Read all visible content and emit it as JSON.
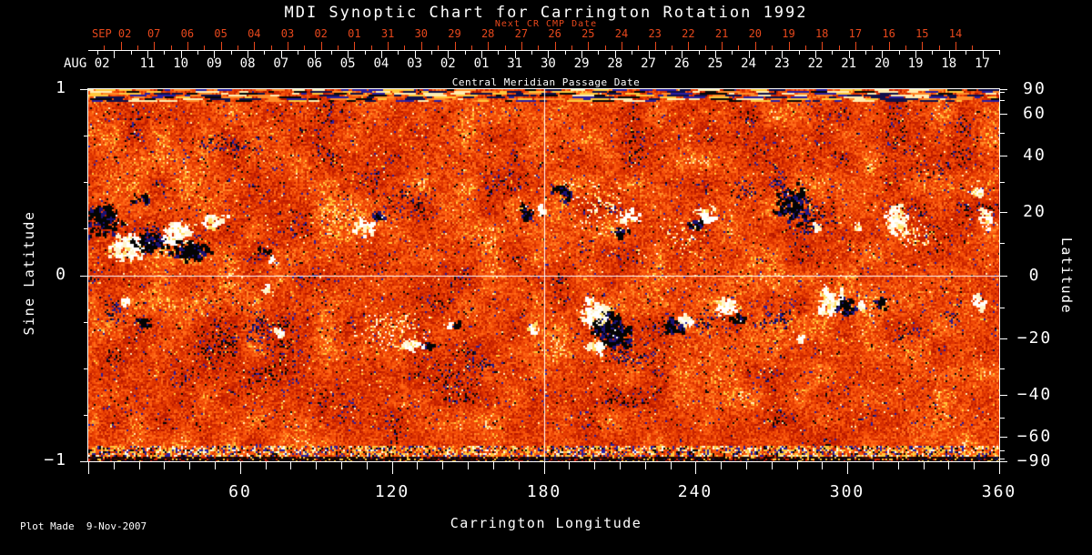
{
  "title": "MDI Synoptic Chart for Carrington Rotation 1992",
  "annotations": {
    "next_cr_label": "Next CR CMP Date",
    "cmp_label": "Central Meridian Passage Date",
    "plot_made": "Plot Made  9-Nov-2007"
  },
  "colors": {
    "background": "#000000",
    "axis_white": "#ffffff",
    "axis_red": "#e8481c",
    "polarity_positive": "#ffffff",
    "polarity_negative": "#000000",
    "quiet_sun_palette": [
      "#b81800",
      "#c62200",
      "#d42c00",
      "#e03600",
      "#ea4204",
      "#f34e08",
      "#fb5a0e",
      "#ff6a18",
      "#ff8c28",
      "#ffc83c",
      "#ffedb0"
    ],
    "speckle_blue": "#2a1ea0",
    "speckle_dark_blue": "#10104a"
  },
  "chart_data": {
    "type": "heatmap",
    "title": "MDI Synoptic Chart for Carrington Rotation 1992",
    "xlabel": "Carrington Longitude",
    "ylabel_left": "Sine Latitude",
    "ylabel_right": "Latitude",
    "x_range": [
      0,
      360
    ],
    "x_tick_values": [
      60,
      120,
      180,
      240,
      300,
      360
    ],
    "x_tick_labels": [
      "60",
      "120",
      "180",
      "240",
      "300",
      "360"
    ],
    "x_minor_step": 10,
    "y_left_range": [
      -1,
      1
    ],
    "y_left_tick_values": [
      1,
      0,
      -1
    ],
    "y_left_tick_labels": [
      "1",
      "0",
      "−1"
    ],
    "y_left_minor_values": [
      0.75,
      0.5,
      0.25,
      -0.25,
      -0.5,
      -0.75
    ],
    "y_right_tick_values": [
      90,
      60,
      40,
      20,
      0,
      -20,
      -40,
      -60,
      -90
    ],
    "y_right_tick_labels": [
      "90",
      "60",
      "40",
      "20",
      "0",
      "−20",
      "−40",
      "−60",
      "−90"
    ],
    "y_right_minor_step": 10,
    "grid": {
      "horizontal_sine_latitude": 0,
      "vertical_longitude": 180
    },
    "top_axis_red": {
      "month_label": "SEP 02",
      "day_labels": [
        "07",
        "06",
        "05",
        "04",
        "03",
        "02",
        "01",
        "31",
        "30",
        "29",
        "28",
        "27",
        "26",
        "25",
        "24",
        "23",
        "22",
        "21",
        "20",
        "19",
        "18",
        "17",
        "16",
        "15",
        "14"
      ]
    },
    "top_axis_white": {
      "month_label": "AUG 02",
      "day_labels": [
        "11",
        "10",
        "09",
        "08",
        "07",
        "06",
        "05",
        "04",
        "03",
        "02",
        "01",
        "31",
        "30",
        "29",
        "28",
        "27",
        "26",
        "25",
        "24",
        "23",
        "22",
        "21",
        "20",
        "19",
        "18",
        "17"
      ]
    },
    "active_regions": [
      [
        "neg",
        18,
        142,
        22,
        26,
        1.0
      ],
      [
        "pos",
        44,
        172,
        26,
        22,
        1.0
      ],
      [
        "neg",
        66,
        168,
        22,
        18,
        0.9
      ],
      [
        "pos",
        96,
        158,
        22,
        20,
        0.9
      ],
      [
        "neg",
        112,
        176,
        26,
        18,
        0.9
      ],
      [
        "pos",
        136,
        144,
        16,
        14,
        0.8
      ],
      [
        "neg",
        58,
        120,
        14,
        10,
        0.6
      ],
      [
        "negweak",
        150,
        60,
        60,
        18,
        0.5
      ],
      [
        "neg",
        193,
        176,
        9,
        8,
        0.8
      ],
      [
        "pos",
        203,
        186,
        8,
        7,
        0.8
      ],
      [
        "pos",
        305,
        150,
        15,
        12,
        0.9
      ],
      [
        "neg",
        318,
        139,
        9,
        7,
        0.8
      ],
      [
        "negweak",
        350,
        120,
        40,
        30,
        0.35
      ],
      [
        "neg",
        480,
        133,
        13,
        12,
        0.9
      ],
      [
        "pos",
        497,
        133,
        8,
        10,
        0.8
      ],
      [
        "neg",
        521,
        113,
        15,
        13,
        0.9
      ],
      [
        "posweak",
        560,
        130,
        45,
        45,
        0.5
      ],
      [
        "pos",
        592,
        140,
        14,
        12,
        0.8
      ],
      [
        "neg",
        585,
        158,
        10,
        8,
        0.8
      ],
      [
        "pos",
        675,
        138,
        16,
        14,
        0.8
      ],
      [
        "neg",
        667,
        148,
        11,
        8,
        0.8
      ],
      [
        "posweak",
        650,
        160,
        40,
        30,
        0.4
      ],
      [
        "negweak",
        722,
        112,
        22,
        18,
        0.7
      ],
      [
        "negweak",
        757,
        98,
        12,
        20,
        0.7
      ],
      [
        "neg",
        772,
        125,
        25,
        28,
        0.7
      ],
      [
        "negweak",
        790,
        140,
        35,
        35,
        0.6
      ],
      [
        "pos",
        800,
        150,
        7,
        6,
        0.7
      ],
      [
        "pos",
        845,
        152,
        7,
        6,
        0.7
      ],
      [
        "pos",
        888,
        142,
        18,
        25,
        0.7
      ],
      [
        "posweak",
        910,
        160,
        35,
        30,
        0.5
      ],
      [
        "pos",
        975,
        112,
        12,
        9,
        0.8
      ],
      [
        "pos",
        985,
        138,
        10,
        16,
        0.7
      ],
      [
        "negweak",
        925,
        90,
        35,
        15,
        0.4
      ],
      [
        "negweak",
        25,
        245,
        22,
        25,
        0.6
      ],
      [
        "pos",
        38,
        232,
        9,
        7,
        0.8
      ],
      [
        "neg",
        60,
        255,
        12,
        14,
        0.6
      ],
      [
        "negweak",
        185,
        262,
        22,
        34,
        0.75
      ],
      [
        "pos",
        210,
        266,
        9,
        7,
        0.8
      ],
      [
        "pos",
        196,
        218,
        8,
        6,
        0.7
      ],
      [
        "posweak",
        330,
        262,
        55,
        35,
        0.55
      ],
      [
        "pos",
        356,
        280,
        20,
        9,
        0.8
      ],
      [
        "neg",
        374,
        282,
        7,
        6,
        0.8
      ],
      [
        "neg",
        404,
        258,
        6,
        5,
        0.8
      ],
      [
        "pos",
        396,
        257,
        6,
        5,
        0.8
      ],
      [
        "negweak",
        430,
        303,
        28,
        14,
        0.6
      ],
      [
        "pos",
        487,
        261,
        9,
        7,
        0.8
      ],
      [
        "pos",
        557,
        247,
        22,
        26,
        1.0
      ],
      [
        "neg",
        574,
        264,
        25,
        28,
        1.0
      ],
      [
        "pos",
        556,
        282,
        12,
        10,
        0.9
      ],
      [
        "negweak",
        600,
        292,
        42,
        22,
        0.6
      ],
      [
        "neg",
        640,
        260,
        18,
        13,
        0.8
      ],
      [
        "pos",
        657,
        254,
        10,
        11,
        0.8
      ],
      [
        "negweak",
        680,
        255,
        30,
        25,
        0.5
      ],
      [
        "pos",
        700,
        238,
        18,
        16,
        0.85
      ],
      [
        "neg",
        713,
        251,
        10,
        8,
        0.8
      ],
      [
        "negweak",
        760,
        248,
        24,
        18,
        0.6
      ],
      [
        "pos",
        782,
        274,
        10,
        5,
        0.7
      ],
      [
        "pos",
        814,
        233,
        18,
        22,
        1.0
      ],
      [
        "neg",
        832,
        238,
        13,
        18,
        0.95
      ],
      [
        "pos",
        849,
        239,
        8,
        8,
        0.85
      ],
      [
        "neg",
        869,
        234,
        11,
        9,
        0.85
      ],
      [
        "negweak",
        755,
        255,
        30,
        15,
        0.5
      ],
      [
        "negweak",
        900,
        268,
        24,
        14,
        0.5
      ],
      [
        "pos",
        978,
        232,
        9,
        9,
        0.8
      ],
      [
        "negweak",
        950,
        248,
        20,
        16,
        0.5
      ]
    ]
  }
}
